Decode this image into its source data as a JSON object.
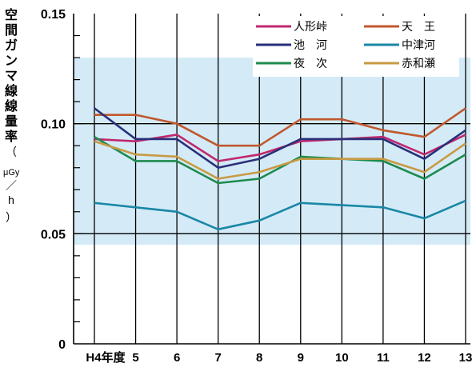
{
  "chart_data": {
    "type": "line",
    "ylabel": "空間ガンマ線線量率（μGy/h）",
    "ylabel_parts": {
      "main": "空間ガンマ線線量率",
      "paren_open": "（",
      "unit_top": "μGy",
      "unit_slash": "／",
      "unit_bottom": "h",
      "paren_close": "）"
    },
    "ylim": [
      0,
      0.15
    ],
    "y_ticks": [
      {
        "value": 0.15,
        "label": "0.15"
      },
      {
        "value": 0.1,
        "label": "0.10"
      },
      {
        "value": 0.05,
        "label": "0.05"
      },
      {
        "value": 0,
        "label": "0"
      }
    ],
    "x": [
      "H4年度",
      "5",
      "6",
      "7",
      "8",
      "9",
      "10",
      "11",
      "12",
      "13"
    ],
    "shaded_band": [
      0.045,
      0.13
    ],
    "series": [
      {
        "name": "人形峠",
        "color": "#c0286e",
        "values": [
          0.093,
          0.092,
          0.095,
          0.083,
          0.086,
          0.092,
          0.093,
          0.094,
          0.086,
          0.095
        ]
      },
      {
        "name": "天　王",
        "color": "#c0582e",
        "values": [
          0.104,
          0.104,
          0.1,
          0.09,
          0.09,
          0.102,
          0.102,
          0.097,
          0.094,
          0.107
        ]
      },
      {
        "name": "池　河",
        "color": "#2a2f7a",
        "values": [
          0.107,
          0.093,
          0.093,
          0.08,
          0.084,
          0.093,
          0.093,
          0.093,
          0.084,
          0.097
        ]
      },
      {
        "name": "中津河",
        "color": "#1a87a6",
        "values": [
          0.064,
          0.062,
          0.06,
          0.052,
          0.056,
          0.064,
          0.063,
          0.062,
          0.057,
          0.065
        ]
      },
      {
        "name": "夜　次",
        "color": "#1e8a4e",
        "values": [
          0.094,
          0.083,
          0.083,
          0.073,
          0.075,
          0.085,
          0.084,
          0.083,
          0.075,
          0.086
        ]
      },
      {
        "name": "赤和瀬",
        "color": "#c89a44",
        "values": [
          0.092,
          0.086,
          0.085,
          0.075,
          0.078,
          0.084,
          0.084,
          0.084,
          0.078,
          0.091
        ]
      }
    ],
    "band_color": "#d4ebf7",
    "grid": true,
    "legend_position": "top-right"
  }
}
